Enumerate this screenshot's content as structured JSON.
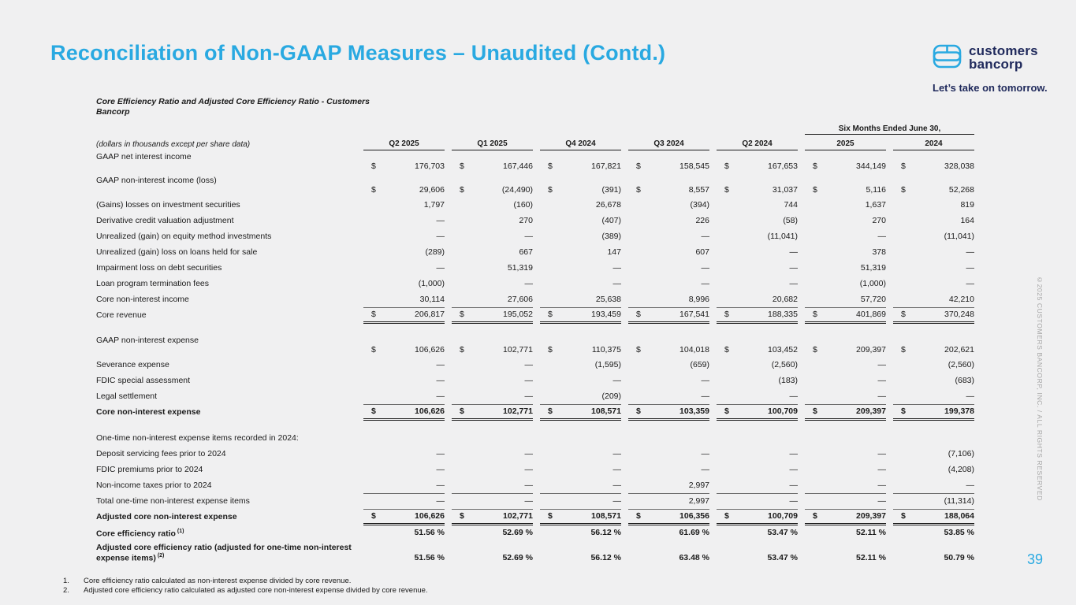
{
  "page": {
    "title": "Reconciliation of Non-GAAP Measures – Unaudited (Contd.)",
    "page_number": "39",
    "copyright_vertical": "©2025 CUSTOMERS BANCORP, INC. / ALL RIGHTS RESERVED"
  },
  "logo": {
    "name_line1": "customers",
    "name_line2": "bancorp",
    "tagline": "Let’s take on tomorrow.",
    "brand_navy": "#202a5c",
    "brand_blue": "#29a9e1"
  },
  "colors": {
    "accent_blue": "#29a9e1",
    "background": "#f0f0f1",
    "text": "#1a1a1a"
  },
  "table": {
    "title": "Core Efficiency Ratio and Adjusted Core Efficiency Ratio - Customers Bancorp",
    "units_note": "(dollars in thousands except per share data)",
    "six_months_header": "Six Months Ended June 30,",
    "columns": [
      "Q2 2025",
      "Q1 2025",
      "Q4 2024",
      "Q3 2024",
      "Q2 2024"
    ],
    "six_months_columns": [
      "2025",
      "2024"
    ],
    "rows": [
      {
        "label": "GAAP net interest income",
        "dollar": true,
        "tall": true,
        "values": [
          "176,703",
          "167,446",
          "167,821",
          "158,545",
          "167,653",
          "344,149",
          "328,038"
        ]
      },
      {
        "label": "GAAP non-interest income (loss)",
        "dollar": true,
        "tall": true,
        "values": [
          "29,606",
          "(24,490)",
          "(391)",
          "8,557",
          "31,037",
          "5,116",
          "52,268"
        ]
      },
      {
        "label": "(Gains) losses on investment securities",
        "values": [
          "1,797",
          "(160)",
          "26,678",
          "(394)",
          "744",
          "1,637",
          "819"
        ]
      },
      {
        "label": "Derivative credit valuation adjustment",
        "values": [
          "—",
          "270",
          "(407)",
          "226",
          "(58)",
          "270",
          "164"
        ]
      },
      {
        "label": "Unrealized (gain) on equity method investments",
        "values": [
          "—",
          "—",
          "(389)",
          "—",
          "(11,041)",
          "—",
          "(11,041)"
        ]
      },
      {
        "label": "Unrealized (gain) loss on loans held for sale",
        "values": [
          "(289)",
          "667",
          "147",
          "607",
          "—",
          "378",
          "—"
        ]
      },
      {
        "label": "Impairment loss on debt securities",
        "values": [
          "—",
          "51,319",
          "—",
          "—",
          "—",
          "51,319",
          "—"
        ]
      },
      {
        "label": "Loan program termination fees",
        "values": [
          "(1,000)",
          "—",
          "—",
          "—",
          "—",
          "(1,000)",
          "—"
        ]
      },
      {
        "label": "Core non-interest income",
        "rule": "single",
        "values": [
          "30,114",
          "27,606",
          "25,638",
          "8,996",
          "20,682",
          "57,720",
          "42,210"
        ]
      },
      {
        "label": "Core revenue",
        "dollar": true,
        "rule": "double",
        "values": [
          "206,817",
          "195,052",
          "193,459",
          "167,541",
          "188,335",
          "401,869",
          "370,248"
        ]
      },
      {
        "spacer": true
      },
      {
        "label": "GAAP non-interest expense",
        "dollar": true,
        "tall": true,
        "values": [
          "106,626",
          "102,771",
          "110,375",
          "104,018",
          "103,452",
          "209,397",
          "202,621"
        ]
      },
      {
        "label": "Severance expense",
        "values": [
          "—",
          "—",
          "(1,595)",
          "(659)",
          "(2,560)",
          "—",
          "(2,560)"
        ]
      },
      {
        "label": "FDIC special assessment",
        "values": [
          "—",
          "—",
          "—",
          "—",
          "(183)",
          "—",
          "(683)"
        ]
      },
      {
        "label": "Legal settlement",
        "rule": "single",
        "values": [
          "—",
          "—",
          "(209)",
          "—",
          "—",
          "—",
          "—"
        ]
      },
      {
        "label": "Core non-interest expense",
        "bold": true,
        "dollar": true,
        "rule": "double",
        "values": [
          "106,626",
          "102,771",
          "108,571",
          "103,359",
          "100,709",
          "209,397",
          "199,378"
        ]
      },
      {
        "spacer": true
      },
      {
        "label": "One-time non-interest expense items recorded in 2024:"
      },
      {
        "label": "Deposit servicing fees prior to 2024",
        "values": [
          "—",
          "—",
          "—",
          "—",
          "—",
          "—",
          "(7,106)"
        ]
      },
      {
        "label": "FDIC premiums prior to 2024",
        "values": [
          "—",
          "—",
          "—",
          "—",
          "—",
          "—",
          "(4,208)"
        ]
      },
      {
        "label": "Non-income taxes prior to 2024",
        "rule": "single",
        "values": [
          "—",
          "—",
          "—",
          "2,997",
          "—",
          "—",
          "—"
        ]
      },
      {
        "label": "Total one-time non-interest expense items",
        "rule": "single",
        "values": [
          "—",
          "—",
          "—",
          "2,997",
          "—",
          "—",
          "(11,314)"
        ]
      },
      {
        "label": "Adjusted core non-interest expense",
        "bold": true,
        "dollar": true,
        "rule": "double",
        "values": [
          "106,626",
          "102,771",
          "108,571",
          "106,356",
          "100,709",
          "209,397",
          "188,064"
        ]
      },
      {
        "label": "Core efficiency ratio",
        "sup": "(1)",
        "bold": true,
        "values": [
          "51.56 %",
          "52.69 %",
          "56.12 %",
          "61.69 %",
          "53.47 %",
          "52.11 %",
          "53.85 %"
        ]
      },
      {
        "label": "Adjusted core efficiency ratio  (adjusted for one-time non-interest expense items)",
        "sup": "(2)",
        "bold": true,
        "wrap2": true,
        "values": [
          "51.56 %",
          "52.69 %",
          "56.12 %",
          "63.48 %",
          "53.47 %",
          "52.11 %",
          "50.79 %"
        ]
      }
    ]
  },
  "footnotes": [
    {
      "num": "1.",
      "text": "Core efficiency ratio calculated as non-interest expense divided by core revenue."
    },
    {
      "num": "2.",
      "text": "Adjusted core efficiency ratio calculated as adjusted core non-interest expense divided by core revenue."
    }
  ]
}
